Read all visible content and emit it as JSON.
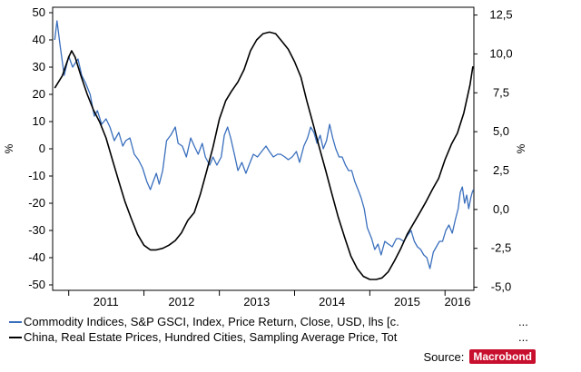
{
  "chart_data": {
    "type": "line",
    "title": "",
    "x_ticks": [
      "2011",
      "2012",
      "2013",
      "2014",
      "2015",
      "2016"
    ],
    "x_range": [
      "2010-10-15",
      "2016-05-20"
    ],
    "y_left": {
      "label": "%",
      "range": [
        -52,
        52
      ],
      "ticks": [
        50,
        40,
        30,
        20,
        10,
        0,
        -10,
        -20,
        -30,
        -40,
        -50
      ],
      "tick_labels": [
        "50",
        "40",
        "30",
        "20",
        "10",
        "0",
        "-10",
        "-20",
        "-30",
        "-40",
        "-50"
      ]
    },
    "y_right": {
      "label": "%",
      "range": [
        -5.2,
        13.0
      ],
      "ticks": [
        12.5,
        10,
        7.5,
        5,
        2.5,
        0,
        -2.5,
        -5
      ],
      "tick_labels": [
        "12,5",
        "10,0",
        "7,5",
        "5,0",
        "2,5",
        "0,0",
        "-2,5",
        "-5,0"
      ]
    },
    "grid": false,
    "series": [
      {
        "name": "Commodity Indices, S&P GSCI, Index, Price Return, Close, USD, lhs [c.",
        "axis": "left",
        "color": "#3a6fbd",
        "points": [
          [
            "2010-10-25",
            40
          ],
          [
            "2010-11-05",
            47
          ],
          [
            "2010-11-20",
            38
          ],
          [
            "2010-12-10",
            27
          ],
          [
            "2011-01-01",
            34
          ],
          [
            "2011-01-20",
            30
          ],
          [
            "2011-02-15",
            33
          ],
          [
            "2011-03-05",
            27
          ],
          [
            "2011-03-25",
            24
          ],
          [
            "2011-04-15",
            20
          ],
          [
            "2011-05-05",
            12
          ],
          [
            "2011-05-20",
            14
          ],
          [
            "2011-06-10",
            9
          ],
          [
            "2011-07-01",
            11
          ],
          [
            "2011-07-20",
            8
          ],
          [
            "2011-08-10",
            3
          ],
          [
            "2011-09-01",
            6
          ],
          [
            "2011-09-20",
            1
          ],
          [
            "2011-10-05",
            3
          ],
          [
            "2011-10-25",
            4
          ],
          [
            "2011-11-15",
            -2
          ],
          [
            "2011-12-05",
            -4
          ],
          [
            "2011-12-25",
            -7
          ],
          [
            "2012-01-15",
            -12
          ],
          [
            "2012-02-01",
            -15
          ],
          [
            "2012-02-15",
            -12
          ],
          [
            "2012-03-01",
            -9
          ],
          [
            "2012-03-15",
            -13
          ],
          [
            "2012-04-01",
            -8
          ],
          [
            "2012-04-20",
            3
          ],
          [
            "2012-05-10",
            5
          ],
          [
            "2012-06-01",
            8
          ],
          [
            "2012-06-15",
            2
          ],
          [
            "2012-07-05",
            1
          ],
          [
            "2012-07-25",
            -3
          ],
          [
            "2012-08-15",
            4
          ],
          [
            "2012-09-01",
            1
          ],
          [
            "2012-09-20",
            -2
          ],
          [
            "2012-10-10",
            2
          ],
          [
            "2012-10-25",
            -3
          ],
          [
            "2012-11-15",
            -6
          ],
          [
            "2012-12-01",
            -3
          ],
          [
            "2012-12-20",
            -6
          ],
          [
            "2013-01-10",
            -3
          ],
          [
            "2013-01-25",
            5
          ],
          [
            "2013-02-10",
            8
          ],
          [
            "2013-02-25",
            4
          ],
          [
            "2013-03-15",
            -2
          ],
          [
            "2013-04-01",
            -8
          ],
          [
            "2013-04-20",
            -5
          ],
          [
            "2013-05-10",
            -9
          ],
          [
            "2013-05-25",
            -6
          ],
          [
            "2013-06-15",
            -2
          ],
          [
            "2013-07-05",
            -3
          ],
          [
            "2013-07-25",
            -1
          ],
          [
            "2013-08-15",
            1
          ],
          [
            "2013-09-01",
            -1
          ],
          [
            "2013-09-20",
            -3
          ],
          [
            "2013-10-10",
            -2
          ],
          [
            "2013-10-25",
            -2
          ],
          [
            "2013-11-15",
            -3
          ],
          [
            "2013-12-01",
            -4
          ],
          [
            "2013-12-20",
            -3
          ],
          [
            "2014-01-10",
            -1
          ],
          [
            "2014-01-25",
            -5
          ],
          [
            "2014-02-15",
            1
          ],
          [
            "2014-03-05",
            4
          ],
          [
            "2014-03-20",
            8
          ],
          [
            "2014-04-05",
            6
          ],
          [
            "2014-04-20",
            2
          ],
          [
            "2014-05-05",
            5
          ],
          [
            "2014-05-20",
            0
          ],
          [
            "2014-06-05",
            3
          ],
          [
            "2014-06-20",
            9
          ],
          [
            "2014-07-05",
            4
          ],
          [
            "2014-07-20",
            0
          ],
          [
            "2014-08-05",
            -3
          ],
          [
            "2014-08-20",
            -3
          ],
          [
            "2014-09-05",
            -6
          ],
          [
            "2014-09-20",
            -8
          ],
          [
            "2014-10-05",
            -8
          ],
          [
            "2014-10-20",
            -12
          ],
          [
            "2014-11-05",
            -15
          ],
          [
            "2014-11-20",
            -18
          ],
          [
            "2014-12-05",
            -22
          ],
          [
            "2014-12-20",
            -29
          ],
          [
            "2015-01-10",
            -33
          ],
          [
            "2015-01-25",
            -37
          ],
          [
            "2015-02-10",
            -35
          ],
          [
            "2015-02-25",
            -39
          ],
          [
            "2015-03-15",
            -34
          ],
          [
            "2015-04-01",
            -35
          ],
          [
            "2015-04-20",
            -36
          ],
          [
            "2015-05-10",
            -33
          ],
          [
            "2015-05-25",
            -33
          ],
          [
            "2015-06-15",
            -34
          ],
          [
            "2015-07-01",
            -32
          ],
          [
            "2015-07-20",
            -30
          ],
          [
            "2015-08-05",
            -34
          ],
          [
            "2015-08-20",
            -36
          ],
          [
            "2015-09-05",
            -37
          ],
          [
            "2015-09-20",
            -39
          ],
          [
            "2015-10-05",
            -40
          ],
          [
            "2015-10-20",
            -44
          ],
          [
            "2015-11-05",
            -38
          ],
          [
            "2015-11-20",
            -36
          ],
          [
            "2015-12-05",
            -34
          ],
          [
            "2015-12-20",
            -34
          ],
          [
            "2016-01-05",
            -30
          ],
          [
            "2016-01-20",
            -28
          ],
          [
            "2016-02-05",
            -31
          ],
          [
            "2016-02-20",
            -26
          ],
          [
            "2016-03-05",
            -22
          ],
          [
            "2016-03-15",
            -16
          ],
          [
            "2016-03-25",
            -14
          ],
          [
            "2016-04-05",
            -20
          ],
          [
            "2016-04-15",
            -17
          ],
          [
            "2016-04-25",
            -22
          ],
          [
            "2016-05-05",
            -18
          ],
          [
            "2016-05-12",
            -16
          ],
          [
            "2016-05-18",
            -15
          ]
        ]
      },
      {
        "name": "China, Real Estate Prices, Hundred Cities, Sampling Average Price, Tot",
        "axis": "right",
        "color": "#000000",
        "points": [
          [
            "2010-10-25",
            7.8
          ],
          [
            "2010-12-01",
            8.6
          ],
          [
            "2011-01-01",
            9.8
          ],
          [
            "2011-01-15",
            10.2
          ],
          [
            "2011-02-01",
            9.8
          ],
          [
            "2011-03-01",
            8.6
          ],
          [
            "2011-04-01",
            7.4
          ],
          [
            "2011-05-01",
            6.4
          ],
          [
            "2011-06-01",
            5.6
          ],
          [
            "2011-07-01",
            4.6
          ],
          [
            "2011-08-01",
            3.2
          ],
          [
            "2011-09-01",
            1.8
          ],
          [
            "2011-10-01",
            0.5
          ],
          [
            "2011-11-01",
            -0.6
          ],
          [
            "2011-12-01",
            -1.6
          ],
          [
            "2012-01-01",
            -2.3
          ],
          [
            "2012-02-01",
            -2.6
          ],
          [
            "2012-03-01",
            -2.6
          ],
          [
            "2012-04-01",
            -2.5
          ],
          [
            "2012-05-01",
            -2.3
          ],
          [
            "2012-06-01",
            -2.0
          ],
          [
            "2012-07-01",
            -1.5
          ],
          [
            "2012-08-01",
            -0.7
          ],
          [
            "2012-09-01",
            -0.2
          ],
          [
            "2012-10-01",
            1.0
          ],
          [
            "2012-11-01",
            2.5
          ],
          [
            "2012-12-01",
            4.0
          ],
          [
            "2013-01-01",
            5.8
          ],
          [
            "2013-02-01",
            7.0
          ],
          [
            "2013-03-01",
            7.6
          ],
          [
            "2013-04-01",
            8.2
          ],
          [
            "2013-05-01",
            9.0
          ],
          [
            "2013-06-01",
            10.2
          ],
          [
            "2013-07-01",
            10.9
          ],
          [
            "2013-08-01",
            11.3
          ],
          [
            "2013-09-01",
            11.4
          ],
          [
            "2013-10-01",
            11.3
          ],
          [
            "2013-11-01",
            10.8
          ],
          [
            "2013-12-01",
            10.3
          ],
          [
            "2014-01-01",
            9.5
          ],
          [
            "2014-02-01",
            8.5
          ],
          [
            "2014-03-01",
            7.0
          ],
          [
            "2014-04-01",
            5.5
          ],
          [
            "2014-05-01",
            4.0
          ],
          [
            "2014-06-01",
            2.5
          ],
          [
            "2014-07-01",
            1.0
          ],
          [
            "2014-08-01",
            -0.5
          ],
          [
            "2014-09-01",
            -1.8
          ],
          [
            "2014-10-01",
            -3.0
          ],
          [
            "2014-11-01",
            -3.8
          ],
          [
            "2014-12-01",
            -4.3
          ],
          [
            "2015-01-01",
            -4.5
          ],
          [
            "2015-02-01",
            -4.5
          ],
          [
            "2015-03-01",
            -4.4
          ],
          [
            "2015-04-01",
            -4.0
          ],
          [
            "2015-05-01",
            -3.3
          ],
          [
            "2015-06-01",
            -2.5
          ],
          [
            "2015-07-01",
            -1.6
          ],
          [
            "2015-08-01",
            -0.9
          ],
          [
            "2015-09-01",
            -0.2
          ],
          [
            "2015-10-01",
            0.5
          ],
          [
            "2015-11-01",
            1.3
          ],
          [
            "2015-12-01",
            2.0
          ],
          [
            "2016-01-01",
            3.2
          ],
          [
            "2016-02-01",
            4.2
          ],
          [
            "2016-03-01",
            4.9
          ],
          [
            "2016-04-01",
            6.2
          ],
          [
            "2016-05-01",
            8.0
          ],
          [
            "2016-05-15",
            9.2
          ]
        ]
      }
    ]
  },
  "legend": {
    "items": [
      {
        "text": "Commodity Indices, S&P GSCI, Index, Price Return, Close, USD, lhs [c.",
        "ellipsis": "...",
        "color": "#3a6fbd"
      },
      {
        "text": "China, Real Estate Prices, Hundred Cities, Sampling Average Price, Tot",
        "ellipsis": "...",
        "color": "#000000"
      }
    ]
  },
  "source": {
    "label": "Source:",
    "brand": "Macrobond"
  }
}
